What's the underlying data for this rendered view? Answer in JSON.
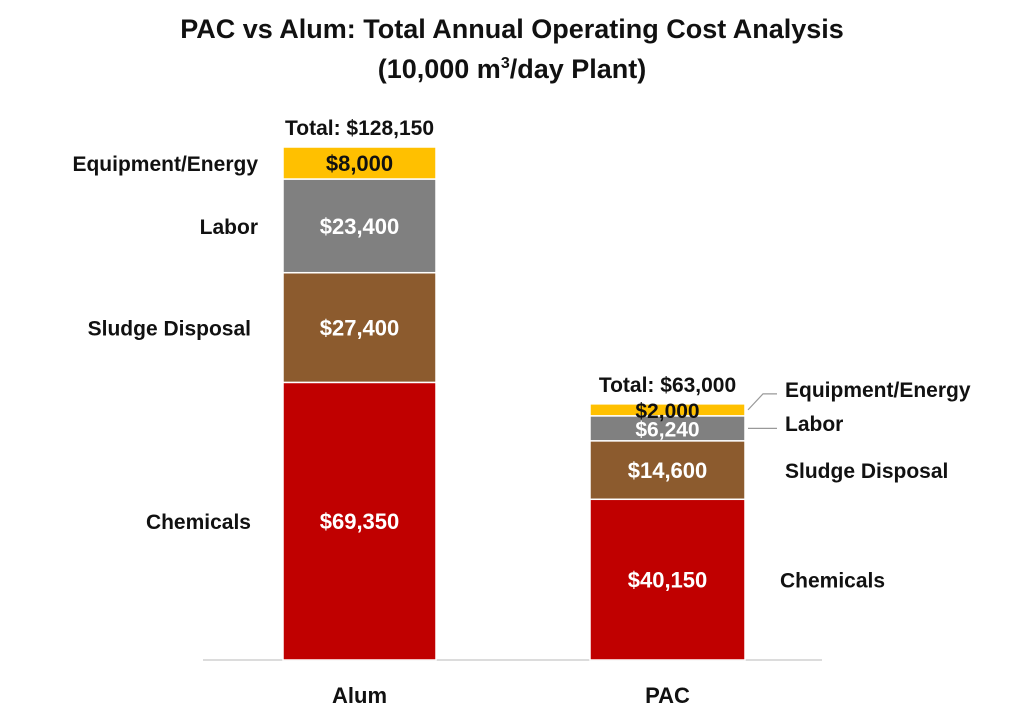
{
  "chart_data": {
    "type": "bar",
    "stacked": true,
    "title": "PAC vs Alum: Total Annual Operating Cost Analysis",
    "subtitle_prefix": "(10,000 m",
    "subtitle_sup": "3",
    "subtitle_suffix": "/day Plant)",
    "categories": [
      "Alum",
      "PAC"
    ],
    "series": [
      {
        "name": "Chemicals",
        "color": "#C00000",
        "label_color": "#ffffff",
        "values": [
          69350,
          40150
        ],
        "labels": [
          "$69,350",
          "$40,150"
        ]
      },
      {
        "name": "Sludge Disposal",
        "color": "#8C5B2E",
        "label_color": "#ffffff",
        "values": [
          27400,
          14600
        ],
        "labels": [
          "$27,400",
          "$14,600"
        ]
      },
      {
        "name": "Labor",
        "color": "#808080",
        "label_color": "#ffffff",
        "values": [
          23400,
          6240
        ],
        "labels": [
          "$23,400",
          "$6,240"
        ]
      },
      {
        "name": "Equipment/Energy",
        "color": "#FFC000",
        "label_color": "#111111",
        "values": [
          8000,
          2000
        ],
        "labels": [
          "$8,000",
          "$2,000"
        ]
      }
    ],
    "totals": [
      128150,
      63000
    ],
    "total_labels": [
      "Total: $128,150",
      "Total: $63,000"
    ],
    "ylim": [
      0,
      128150
    ],
    "grid": false,
    "legend": "none (segment names labeled beside bars)"
  }
}
